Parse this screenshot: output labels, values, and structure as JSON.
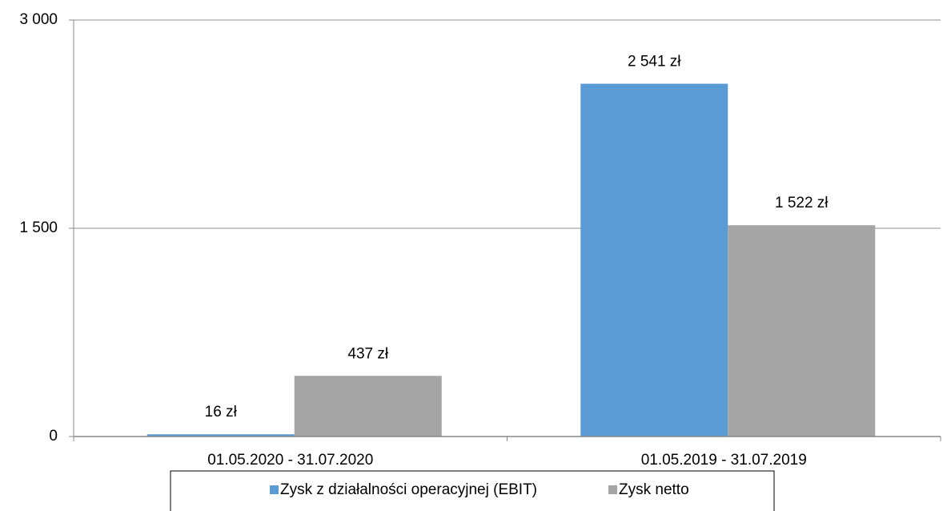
{
  "chart_data": {
    "type": "bar",
    "categories": [
      "01.05.2020 - 31.07.2020",
      "01.05.2019 - 31.07.2019"
    ],
    "series": [
      {
        "name": "Zysk z działalności operacyjnej (EBIT)",
        "color": "#5b9bd5",
        "values": [
          16,
          2541
        ],
        "value_labels": [
          "16 zł",
          "2 541 zł"
        ]
      },
      {
        "name": "Zysk netto",
        "color": "#a5a5a5",
        "values": [
          437,
          1522
        ],
        "value_labels": [
          "437 zł",
          "1 522 zł"
        ]
      }
    ],
    "ylim": [
      0,
      3000
    ],
    "yticks": [
      {
        "value": 0,
        "label": "0"
      },
      {
        "value": 1500,
        "label": "1 500"
      },
      {
        "value": 3000,
        "label": "3 000"
      }
    ],
    "grid": true,
    "legend": "bottom"
  }
}
